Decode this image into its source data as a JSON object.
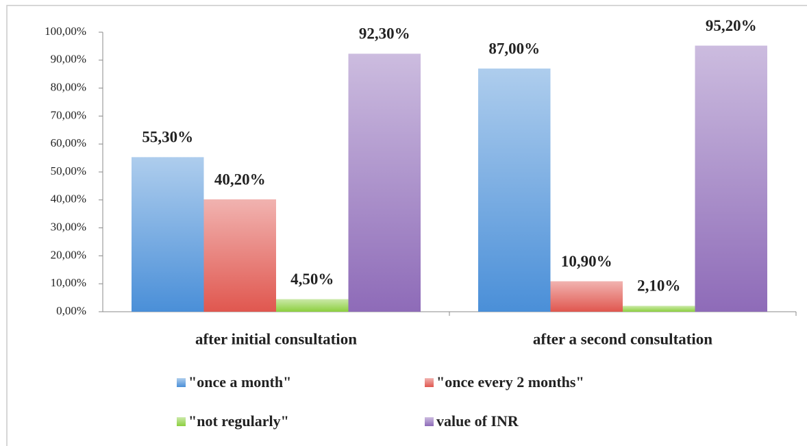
{
  "chart_data": {
    "type": "bar",
    "categories": [
      "after initial consultation",
      "after a second consultation"
    ],
    "series": [
      {
        "name": "\"once a month\"",
        "color": "#4a8fd8",
        "values": [
          55.3,
          87.0
        ],
        "value_labels": [
          "55,30%",
          "87,00%"
        ]
      },
      {
        "name": "\"once every 2 months\"",
        "color": "#e0574f",
        "values": [
          40.2,
          10.9
        ],
        "value_labels": [
          "40,20%",
          "10,90%"
        ]
      },
      {
        "name": "\"not regularly\"",
        "color": "#8ccf3f",
        "values": [
          4.5,
          2.1
        ],
        "value_labels": [
          "4,50%",
          "2,10%"
        ]
      },
      {
        "name": "value of INR",
        "color": "#8e6bb8",
        "values": [
          92.3,
          95.2
        ],
        "value_labels": [
          "92,30%",
          "95,20%"
        ]
      }
    ],
    "ylim": [
      0,
      100
    ],
    "yticks": [
      {
        "value": 0,
        "label": "0,00%"
      },
      {
        "value": 10,
        "label": "10,00%"
      },
      {
        "value": 20,
        "label": "20,00%"
      },
      {
        "value": 30,
        "label": "30,00%"
      },
      {
        "value": 40,
        "label": "40,00%"
      },
      {
        "value": 50,
        "label": "50,00%"
      },
      {
        "value": 60,
        "label": "60,00%"
      },
      {
        "value": 70,
        "label": "70,00%"
      },
      {
        "value": 80,
        "label": "80,00%"
      },
      {
        "value": 90,
        "label": "90,00%"
      },
      {
        "value": 100,
        "label": "100,00%"
      }
    ],
    "grid": false,
    "legend": "bottom"
  }
}
